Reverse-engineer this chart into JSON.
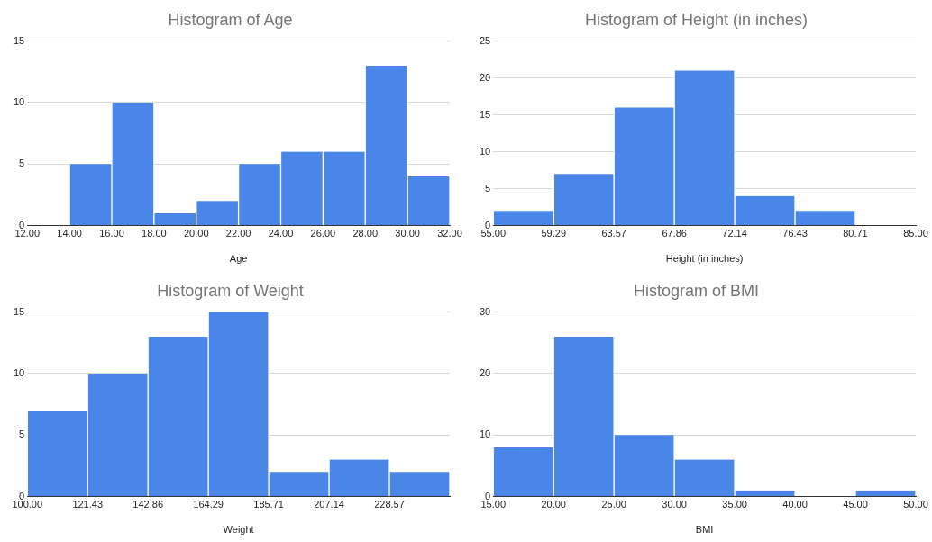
{
  "chart_data": [
    {
      "type": "histogram",
      "title": "Histogram of Age",
      "xlabel": "Age",
      "color": "#4a86e8",
      "grid": "y",
      "bins": [
        12,
        14,
        16,
        18,
        20,
        22,
        24,
        26,
        28,
        30,
        32
      ],
      "values": [
        0,
        5,
        10,
        1,
        2,
        5,
        6,
        6,
        13,
        4
      ],
      "xlim": [
        12,
        32
      ],
      "xticks": [
        {
          "value": 12,
          "label": "12.00"
        },
        {
          "value": 14,
          "label": "14.00"
        },
        {
          "value": 16,
          "label": "16.00"
        },
        {
          "value": 18,
          "label": "18.00"
        },
        {
          "value": 20,
          "label": "20.00"
        },
        {
          "value": 22,
          "label": "22.00"
        },
        {
          "value": 24,
          "label": "24.00"
        },
        {
          "value": 26,
          "label": "26.00"
        },
        {
          "value": 28,
          "label": "28.00"
        },
        {
          "value": 30,
          "label": "30.00"
        },
        {
          "value": 32,
          "label": "32.00"
        }
      ],
      "ylim": [
        0,
        15
      ],
      "yticks": [
        0,
        5,
        10,
        15
      ]
    },
    {
      "type": "histogram",
      "title": "Histogram of Height (in inches)",
      "xlabel": "Height (in inches)",
      "color": "#4a86e8",
      "grid": "y",
      "bins": [
        55,
        59.29,
        63.57,
        67.86,
        72.14,
        76.43,
        80.71,
        85
      ],
      "values": [
        2,
        7,
        16,
        21,
        4,
        2,
        0
      ],
      "xlim": [
        55,
        85
      ],
      "xticks": [
        {
          "value": 55,
          "label": "55.00"
        },
        {
          "value": 59.29,
          "label": "59.29"
        },
        {
          "value": 63.57,
          "label": "63.57"
        },
        {
          "value": 67.86,
          "label": "67.86"
        },
        {
          "value": 72.14,
          "label": "72.14"
        },
        {
          "value": 76.43,
          "label": "76.43"
        },
        {
          "value": 80.71,
          "label": "80.71"
        },
        {
          "value": 85,
          "label": "85.00"
        }
      ],
      "ylim": [
        0,
        25
      ],
      "yticks": [
        0,
        5,
        10,
        15,
        20,
        25
      ]
    },
    {
      "type": "histogram",
      "title": "Histogram of Weight",
      "xlabel": "Weight",
      "color": "#4a86e8",
      "grid": "y",
      "bins": [
        100,
        121.43,
        142.86,
        164.29,
        185.71,
        207.14,
        228.57,
        250
      ],
      "values": [
        7,
        10,
        13,
        15,
        2,
        3,
        2
      ],
      "xlim": [
        100,
        250
      ],
      "xticks": [
        {
          "value": 100,
          "label": "100.00"
        },
        {
          "value": 121.43,
          "label": "121.43"
        },
        {
          "value": 142.86,
          "label": "142.86"
        },
        {
          "value": 164.29,
          "label": "164.29"
        },
        {
          "value": 185.71,
          "label": "185.71"
        },
        {
          "value": 207.14,
          "label": "207.14"
        },
        {
          "value": 228.57,
          "label": "228.57"
        }
      ],
      "ylim": [
        0,
        15
      ],
      "yticks": [
        0,
        5,
        10,
        15
      ]
    },
    {
      "type": "histogram",
      "title": "Histogram of BMI",
      "xlabel": "BMI",
      "color": "#4a86e8",
      "grid": "y",
      "bins": [
        15,
        20,
        25,
        30,
        35,
        40,
        45,
        50
      ],
      "values": [
        8,
        26,
        10,
        6,
        1,
        0,
        1
      ],
      "xlim": [
        15,
        50
      ],
      "xticks": [
        {
          "value": 15,
          "label": "15.00"
        },
        {
          "value": 20,
          "label": "20.00"
        },
        {
          "value": 25,
          "label": "25.00"
        },
        {
          "value": 30,
          "label": "30.00"
        },
        {
          "value": 35,
          "label": "35.00"
        },
        {
          "value": 40,
          "label": "40.00"
        },
        {
          "value": 45,
          "label": "45.00"
        },
        {
          "value": 50,
          "label": "50.00"
        }
      ],
      "ylim": [
        0,
        30
      ],
      "yticks": [
        0,
        10,
        20,
        30
      ]
    }
  ]
}
